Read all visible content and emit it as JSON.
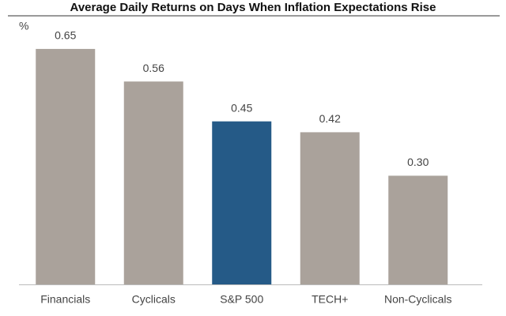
{
  "chart_data": {
    "type": "bar",
    "title": "Average Daily Returns on Days When Inflation Expectations Rise",
    "unit_label": "%",
    "categories": [
      "Financials",
      "Cyclicals",
      "S&P 500",
      "TECH+",
      "Non-Cyclicals"
    ],
    "values": [
      0.65,
      0.56,
      0.45,
      0.42,
      0.3
    ],
    "value_labels": [
      "0.65",
      "0.56",
      "0.45",
      "0.42",
      "0.30"
    ],
    "colors": [
      "#aaa29b",
      "#aaa29b",
      "#255a87",
      "#aaa29b",
      "#aaa29b"
    ],
    "ylim": [
      0,
      0.7
    ]
  }
}
